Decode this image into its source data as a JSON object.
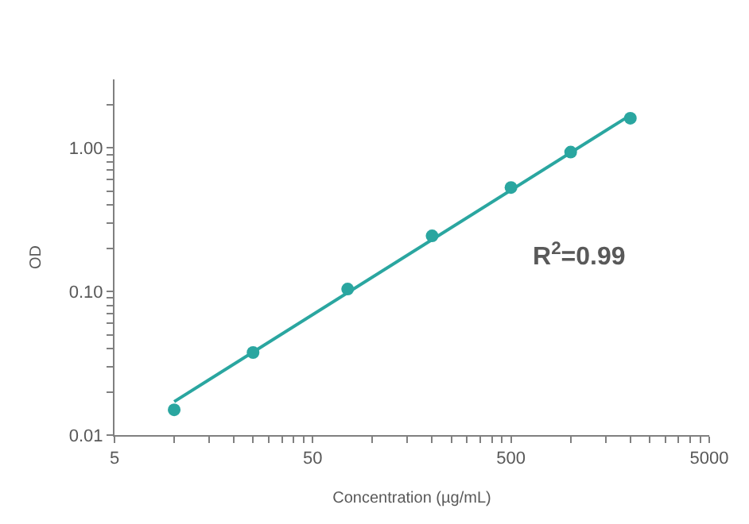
{
  "chart_data": {
    "type": "scatter",
    "xlabel": "Concentration (µg/mL)",
    "ylabel": "OD",
    "log": "xy",
    "xlim": [
      5,
      5000
    ],
    "xticks": [
      5,
      {
        "value": 10,
        "label": null
      },
      {
        "value": 15,
        "label": null
      },
      {
        "value": 20,
        "label": null
      },
      {
        "value": 25,
        "label": null
      },
      {
        "value": 30,
        "label": null
      },
      {
        "value": 35,
        "label": null
      },
      {
        "value": 40,
        "label": null
      },
      {
        "value": 45,
        "label": null
      },
      50,
      {
        "value": 100,
        "label": null
      },
      {
        "value": 150,
        "label": null
      },
      {
        "value": 200,
        "label": null
      },
      {
        "value": 250,
        "label": null
      },
      {
        "value": 300,
        "label": null
      },
      {
        "value": 350,
        "label": null
      },
      {
        "value": 400,
        "label": null
      },
      {
        "value": 450,
        "label": null
      },
      500,
      {
        "value": 1000,
        "label": null
      },
      {
        "value": 1500,
        "label": null
      },
      {
        "value": 2000,
        "label": null
      },
      {
        "value": 2500,
        "label": null
      },
      {
        "value": 3000,
        "label": null
      },
      {
        "value": 3500,
        "label": null
      },
      {
        "value": 4000,
        "label": null
      },
      {
        "value": 4500,
        "label": null
      },
      5000
    ],
    "ylim": [
      0.01,
      3
    ],
    "yticks": [
      {
        "value": 0.01,
        "label": "0.01"
      },
      {
        "value": 0.02,
        "label": null
      },
      {
        "value": 0.03,
        "label": null
      },
      {
        "value": 0.04,
        "label": null
      },
      {
        "value": 0.05,
        "label": null
      },
      {
        "value": 0.06,
        "label": null
      },
      {
        "value": 0.07,
        "label": null
      },
      {
        "value": 0.08,
        "label": null
      },
      {
        "value": 0.09,
        "label": null
      },
      {
        "value": 0.1,
        "label": "0.10"
      },
      {
        "value": 0.2,
        "label": null
      },
      {
        "value": 0.3,
        "label": null
      },
      {
        "value": 0.4,
        "label": null
      },
      {
        "value": 0.5,
        "label": null
      },
      {
        "value": 0.6,
        "label": null
      },
      {
        "value": 0.7,
        "label": null
      },
      {
        "value": 0.8,
        "label": null
      },
      {
        "value": 0.9,
        "label": null
      },
      {
        "value": 1,
        "label": "1.00"
      },
      {
        "value": 2,
        "label": null
      }
    ],
    "series": [
      {
        "type": "line",
        "color": "#2aa6a0",
        "x": [
          10,
          2000
        ],
        "values": [
          0.0171,
          1.69
        ],
        "marker": "none",
        "line_style": "solid"
      },
      {
        "color": "#2aa6a0",
        "x": [
          10,
          25,
          75,
          200,
          500,
          1000,
          2000
        ],
        "values": [
          0.015,
          0.0376,
          0.104,
          0.244,
          0.53,
          0.935,
          1.61
        ],
        "marker": "circle"
      }
    ],
    "annotations": [
      "R$^{2}$=0.99"
    ]
  }
}
